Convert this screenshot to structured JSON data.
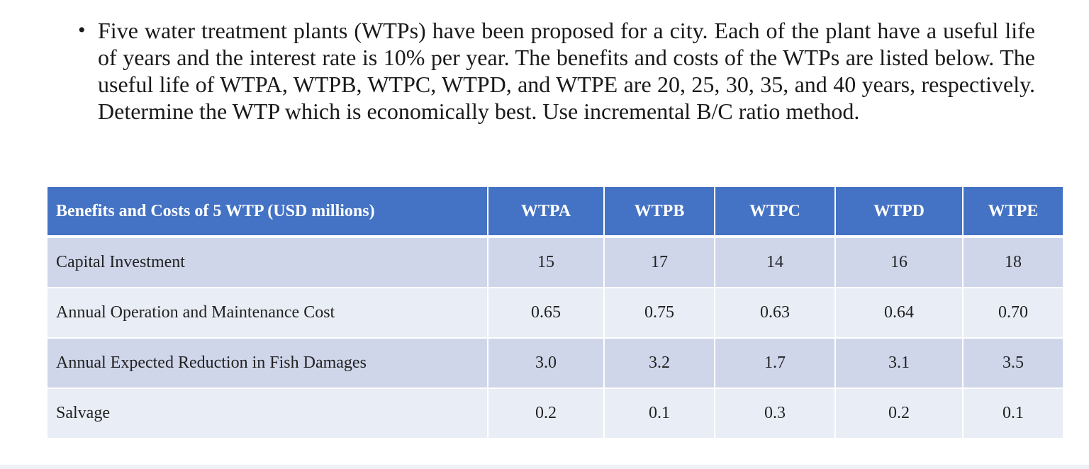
{
  "problem": {
    "bullet": "•",
    "text": "Five water treatment plants (WTPs) have been proposed for a city. Each of the plant have a useful life of  years and the interest rate is 10% per year. The benefits and costs of the WTPs are listed below. The useful life of WTPA, WTPB, WTPC, WTPD, and WTPE are 20, 25, 30, 35, and 40 years, respectively. Determine the WTP which is economically best. Use incremental B/C ratio method."
  },
  "table": {
    "header": [
      "Benefits and Costs of 5 WTP (USD millions)",
      "WTPA",
      "WTPB",
      "WTPC",
      "WTPD",
      "WTPE"
    ],
    "rows": [
      [
        "Capital Investment",
        "15",
        "17",
        "14",
        "16",
        "18"
      ],
      [
        "Annual Operation and Maintenance Cost",
        "0.65",
        "0.75",
        "0.63",
        "0.64",
        "0.70"
      ],
      [
        "Annual Expected Reduction in Fish Damages",
        "3.0",
        "3.2",
        "1.7",
        "3.1",
        "3.5"
      ],
      [
        "Salvage",
        "0.2",
        "0.1",
        "0.3",
        "0.2",
        "0.1"
      ]
    ]
  },
  "colors": {
    "header_bg": "#4472c4",
    "row_odd_bg": "#cfd6ea",
    "row_even_bg": "#e9edf5"
  }
}
